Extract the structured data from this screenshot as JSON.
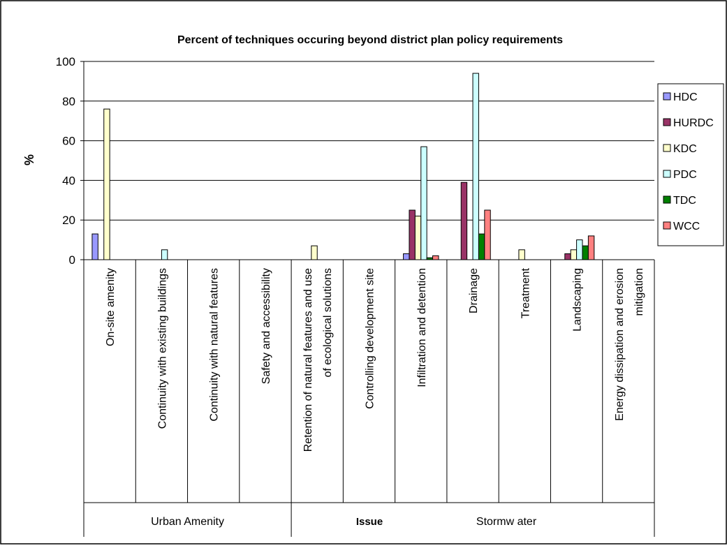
{
  "chart_data": {
    "type": "bar",
    "title": "Percent of techniques occuring beyond district plan policy requirements",
    "ylabel": "%",
    "xlabel": "Issue",
    "ylim": [
      0,
      100
    ],
    "yticks": [
      0,
      20,
      40,
      60,
      80,
      100
    ],
    "grid": true,
    "legend_position": "right",
    "categories": [
      "On-site amenity",
      "Continuity with existing buildings",
      "Continuity with natural features",
      "Safety and accessibility",
      "Retention of natural features and use of ecological solutions",
      "Controlling development site",
      "Infiltration and detention",
      "Drainage",
      "Treatment",
      "Landscaping",
      "Energy dissipation and erosion mitigation"
    ],
    "category_lines": [
      [
        "On-site amenity"
      ],
      [
        "Continuity with existing buildings"
      ],
      [
        "Continuity with natural features"
      ],
      [
        "Safety and accessibility"
      ],
      [
        "Retention of natural features and use",
        "of ecological solutions"
      ],
      [
        "Controlling development site"
      ],
      [
        "Infiltration and detention"
      ],
      [
        "Drainage"
      ],
      [
        "Treatment"
      ],
      [
        "Landscaping"
      ],
      [
        "Energy dissipation and erosion",
        "mitigation"
      ]
    ],
    "groups": [
      {
        "label": "Urban Amenity",
        "start": 0,
        "end": 3
      },
      {
        "label": "Stormw ater",
        "start": 4,
        "end": 10
      }
    ],
    "series": [
      {
        "name": "HDC",
        "color": "#9999ff",
        "values": [
          13,
          0,
          0,
          0,
          0,
          0,
          3,
          0,
          0,
          0,
          0
        ]
      },
      {
        "name": "HURDC",
        "color": "#993366",
        "values": [
          0,
          0,
          0,
          0,
          0,
          0,
          25,
          39,
          0,
          3,
          0
        ]
      },
      {
        "name": "KDC",
        "color": "#ffffcc",
        "values": [
          76,
          0,
          0,
          0,
          7,
          0,
          22,
          0,
          5,
          5,
          0
        ]
      },
      {
        "name": "PDC",
        "color": "#ccffff",
        "values": [
          0,
          5,
          0,
          0,
          0,
          0,
          57,
          94,
          0,
          10,
          0
        ]
      },
      {
        "name": "TDC",
        "color": "#008000",
        "values": [
          0,
          0,
          0,
          0,
          0,
          0,
          1,
          13,
          0,
          7,
          0
        ]
      },
      {
        "name": "WCC",
        "color": "#ff8080",
        "values": [
          0,
          0,
          0,
          0,
          0,
          0,
          2,
          25,
          0,
          12,
          0
        ]
      }
    ]
  }
}
